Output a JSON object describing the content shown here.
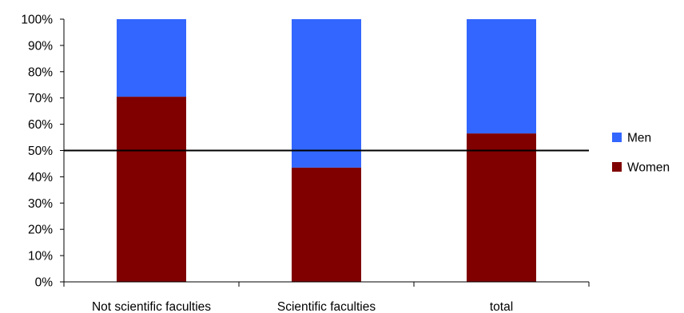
{
  "chart_data": {
    "type": "bar",
    "stacked": true,
    "percent_stacked": true,
    "categories": [
      "Not scientific faculties",
      "Scientific faculties",
      "total"
    ],
    "series": [
      {
        "name": "Women",
        "values": [
          70.5,
          43.5,
          56.5
        ],
        "color": "#800000"
      },
      {
        "name": "Men",
        "values": [
          29.5,
          56.5,
          43.5
        ],
        "color": "#3366FF"
      }
    ],
    "reference_line": {
      "value": 50,
      "color": "#000000"
    },
    "y_ticks": [
      "0%",
      "10%",
      "20%",
      "30%",
      "40%",
      "50%",
      "60%",
      "70%",
      "80%",
      "90%",
      "100%"
    ],
    "ylim": [
      0,
      100
    ],
    "grid": false,
    "legend": {
      "position": "right",
      "order": [
        "Men",
        "Women"
      ]
    },
    "title": "",
    "xlabel": "",
    "ylabel": ""
  }
}
